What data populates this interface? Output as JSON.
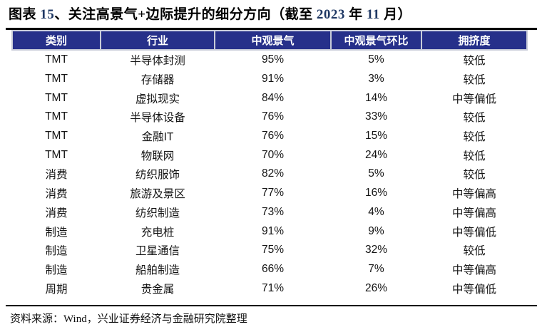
{
  "header": {
    "title_full": "图表 15、关注高景气+边际提升的细分方向（截至 2023 年 11 月）",
    "title_segments": [
      {
        "text": "图表 ",
        "style": "cn"
      },
      {
        "text": "15",
        "style": "num"
      },
      {
        "text": "、关注高景气+边际提升的细分方向（截至 ",
        "style": "cn"
      },
      {
        "text": "2023",
        "style": "num"
      },
      {
        "text": " 年 ",
        "style": "cn"
      },
      {
        "text": "11",
        "style": "num"
      },
      {
        "text": " 月）",
        "style": "cn"
      }
    ]
  },
  "chart_data": {
    "type": "table",
    "title": "图表 15、关注高景气+边际提升的细分方向（截至 2023 年 11 月）",
    "columns": [
      "类别",
      "行业",
      "中观景气",
      "中观景气环比",
      "拥挤度"
    ],
    "rows": [
      [
        "TMT",
        "半导体封测",
        "95%",
        "5%",
        "较低"
      ],
      [
        "TMT",
        "存储器",
        "91%",
        "3%",
        "较低"
      ],
      [
        "TMT",
        "虚拟现实",
        "84%",
        "14%",
        "中等偏低"
      ],
      [
        "TMT",
        "半导体设备",
        "76%",
        "33%",
        "较低"
      ],
      [
        "TMT",
        "金融IT",
        "76%",
        "15%",
        "较低"
      ],
      [
        "TMT",
        "物联网",
        "70%",
        "24%",
        "较低"
      ],
      [
        "消费",
        "纺织服饰",
        "82%",
        "5%",
        "较低"
      ],
      [
        "消费",
        "旅游及景区",
        "77%",
        "16%",
        "中等偏高"
      ],
      [
        "消费",
        "纺织制造",
        "73%",
        "4%",
        "中等偏高"
      ],
      [
        "制造",
        "充电桩",
        "91%",
        "9%",
        "中等偏低"
      ],
      [
        "制造",
        "卫星通信",
        "75%",
        "32%",
        "较低"
      ],
      [
        "制造",
        "船舶制造",
        "66%",
        "7%",
        "中等偏高"
      ],
      [
        "周期",
        "贵金属",
        "71%",
        "26%",
        "中等偏低"
      ]
    ],
    "source": "资料来源：Wind，兴业证券经济与金融研究院整理"
  },
  "footer": {
    "source": "资料来源：Wind，兴业证券经济与金融研究院整理"
  },
  "colors": {
    "header_bg": "#26308A",
    "header_text": "#FFFFFF",
    "title_number": "#1F3864",
    "rule": "#000000",
    "header_grid": "#C8CCD8"
  }
}
